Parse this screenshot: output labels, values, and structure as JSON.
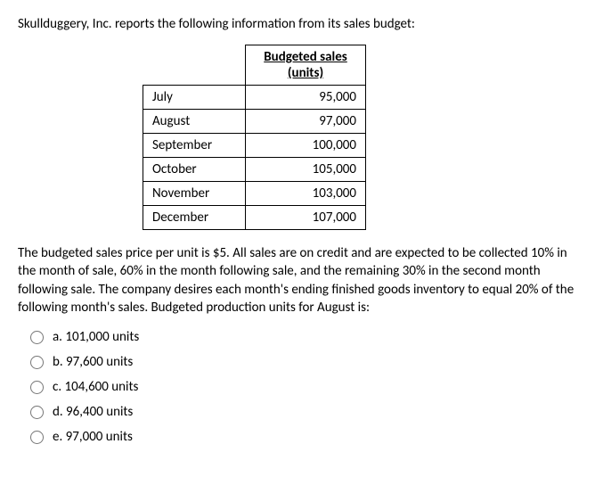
{
  "intro": "Skullduggery, Inc. reports the following information from its sales budget:",
  "table": {
    "header_line1": "Budgeted sales",
    "header_line2": "(units)",
    "rows": [
      {
        "month": "July",
        "units": "95,000"
      },
      {
        "month": "August",
        "units": "97,000"
      },
      {
        "month": "September",
        "units": "100,000"
      },
      {
        "month": "October",
        "units": "105,000"
      },
      {
        "month": "November",
        "units": "103,000"
      },
      {
        "month": "December",
        "units": "107,000"
      }
    ]
  },
  "paragraph": "The budgeted sales price per unit is $5.  All sales are on credit and are expected to be collected 10% in the month of sale, 60% in the month following sale, and the remaining 30% in the second month following sale. The company desires each month's ending finished goods inventory to equal 20% of the following month's sales.  Budgeted production units for August is:",
  "options": {
    "a": "a. 101,000 units",
    "b": "b. 97,600 units",
    "c": "c. 104,600 units",
    "d": "d. 96,400 units",
    "e": "e. 97,000 units"
  }
}
